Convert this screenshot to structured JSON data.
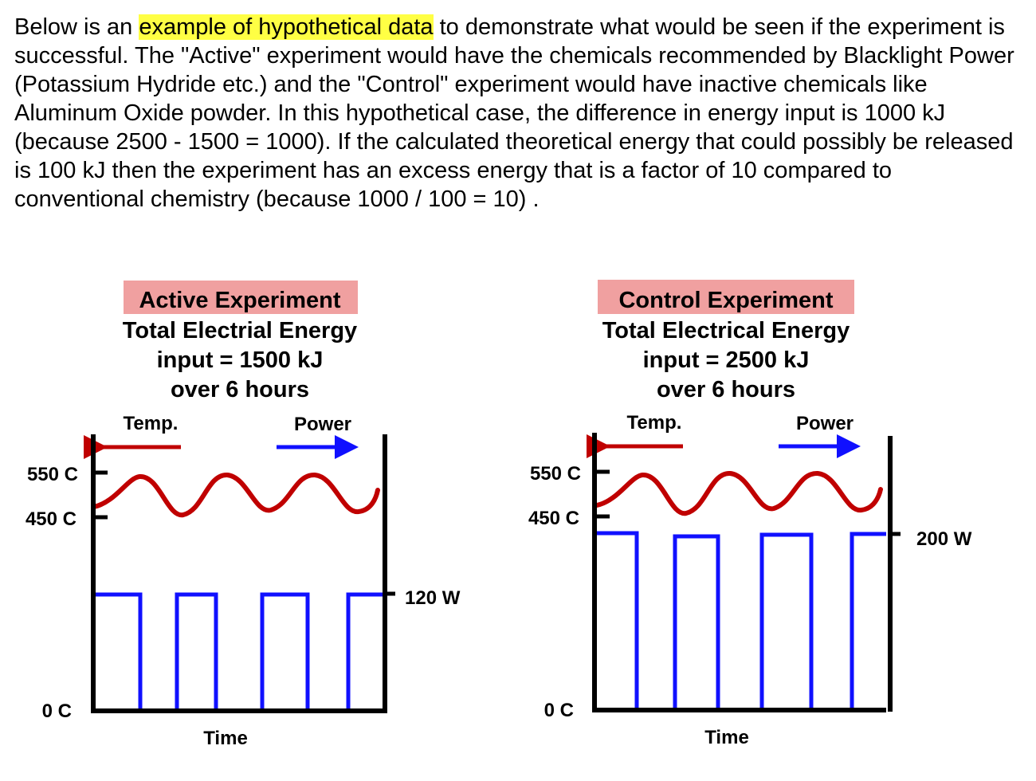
{
  "intro": {
    "before": "Below is an ",
    "highlight": "example of hypothetical data",
    "after": " to demonstrate what would be seen if the experiment is successful.  The \"Active\" experiment would have the chemicals recommended by Blacklight Power (Potassium Hydride etc.) and the \"Control\" experiment would have inactive chemicals like Aluminum Oxide powder.  In this hypothetical case, the difference in energy input is 1000 kJ (because 2500 - 1500 = 1000).  If the calculated theoretical energy that could possibly be released is 100 kJ then the experiment has an excess energy that is a factor of 10 compared to conventional chemistry (because 1000 / 100 = 10) ."
  },
  "colors": {
    "highlight": "#ffff44",
    "title_bg": "#f0a0a0",
    "temp_curve": "#c00000",
    "power_line": "#1010ff",
    "axis": "#000000"
  },
  "panels": [
    {
      "title": "Active Experiment",
      "line1": "Total Electrial Energy",
      "line2": "input = 1500 kJ",
      "line3": "over 6 hours",
      "temp_label": "Temp.",
      "power_label": "Power",
      "tick_550": "550 C",
      "tick_450": "450 C",
      "tick_0": "0 C",
      "power_tick": "120 W",
      "power_w": 120,
      "xlabel": "Time"
    },
    {
      "title": "Control Experiment",
      "line1": "Total Electrical Energy",
      "line2": "input = 2500 kJ",
      "line3": "over 6 hours",
      "temp_label": "Temp.",
      "power_label": "Power",
      "tick_550": "550 C",
      "tick_450": "450 C",
      "tick_0": "0 C",
      "power_tick": "200 W",
      "power_w": 200,
      "xlabel": "Time"
    }
  ]
}
